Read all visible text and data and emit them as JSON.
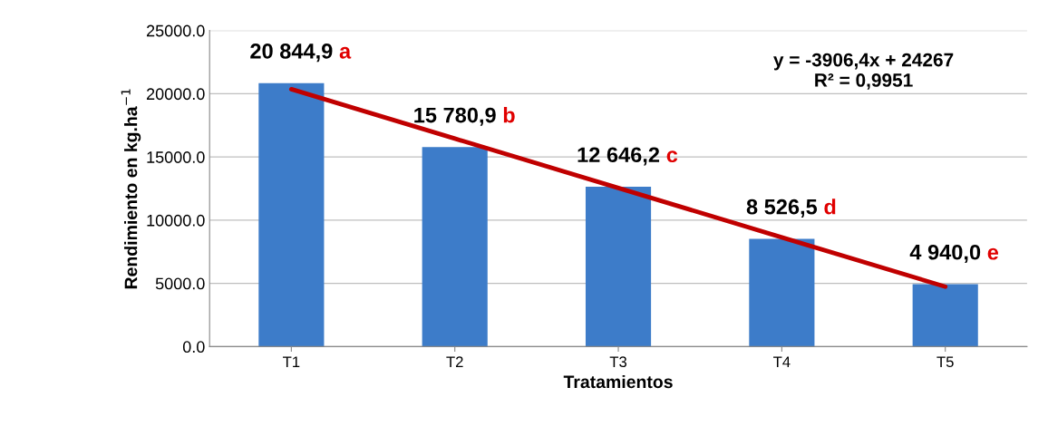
{
  "chart_data": {
    "type": "bar",
    "xlabel": "Tratamientos",
    "ylabel": "Rendimiento en kg.ha$^{−1}$",
    "categories": [
      "T1",
      "T2",
      "T3",
      "T4",
      "T5"
    ],
    "series": [
      {
        "color": "#3d7cc9",
        "values": [
          20844.9,
          15780.9,
          12646.2,
          8526.5,
          4940.0
        ],
        "value_labels": [
          "20 844,9",
          "15 780,9",
          "12 646,2",
          "8 526,5",
          "4 940,0"
        ]
      },
      {
        "type": "line",
        "color": "#c00000",
        "values": [
          20360,
          16450,
          12550,
          8640,
          4740
        ]
      }
    ],
    "ylim": [
      0,
      25000
    ],
    "yticks": [
      {
        "value": 0,
        "label": "0.0"
      },
      {
        "value": 5000,
        "label": "5000.0"
      },
      {
        "value": 10000,
        "label": "10000.0"
      },
      {
        "value": 15000,
        "label": "15000.0"
      },
      {
        "value": 20000,
        "label": "20000.0"
      },
      {
        "value": 25000,
        "label": "25000.0"
      }
    ],
    "grid": "y",
    "legend": false,
    "annotations": [
      {
        "text": "a",
        "x": "T1",
        "y": 20844.9
      },
      {
        "text": "b",
        "x": "T2",
        "y": 15780.9
      },
      {
        "text": "c",
        "x": "T3",
        "y": 12646.2
      },
      {
        "text": "d",
        "x": "T4",
        "y": 8526.5
      },
      {
        "text": "e",
        "x": "T5",
        "y": 4940.0
      },
      "y = -3906,4x + 24267\nR² = 0,9951"
    ]
  }
}
